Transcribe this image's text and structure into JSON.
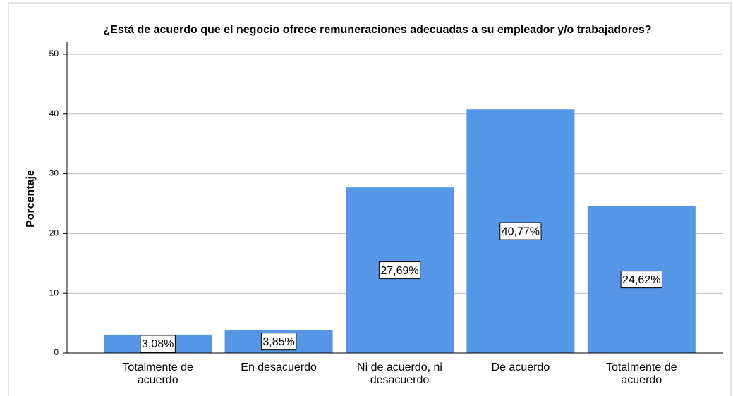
{
  "chart_data": {
    "type": "bar",
    "title": "¿Está de acuerdo que el negocio ofrece remuneraciones adecuadas a su empleador y/o trabajadores?",
    "ylabel": "Porcentaje",
    "categories": [
      "Totalmente de acuerdo",
      "En desacuerdo",
      "Ni de acuerdo, ni desacuerdo",
      "De acuerdo",
      "Totalmente de acuerdo"
    ],
    "values": [
      3.08,
      3.85,
      27.69,
      40.77,
      24.62
    ],
    "value_labels": [
      "3,08%",
      "3,85%",
      "27,69%",
      "40,77%",
      "24,62%"
    ],
    "color": "#5596e6",
    "ylim": [
      0,
      52
    ],
    "yticks": [
      0,
      10,
      20,
      30,
      40,
      50
    ],
    "grid": true
  }
}
